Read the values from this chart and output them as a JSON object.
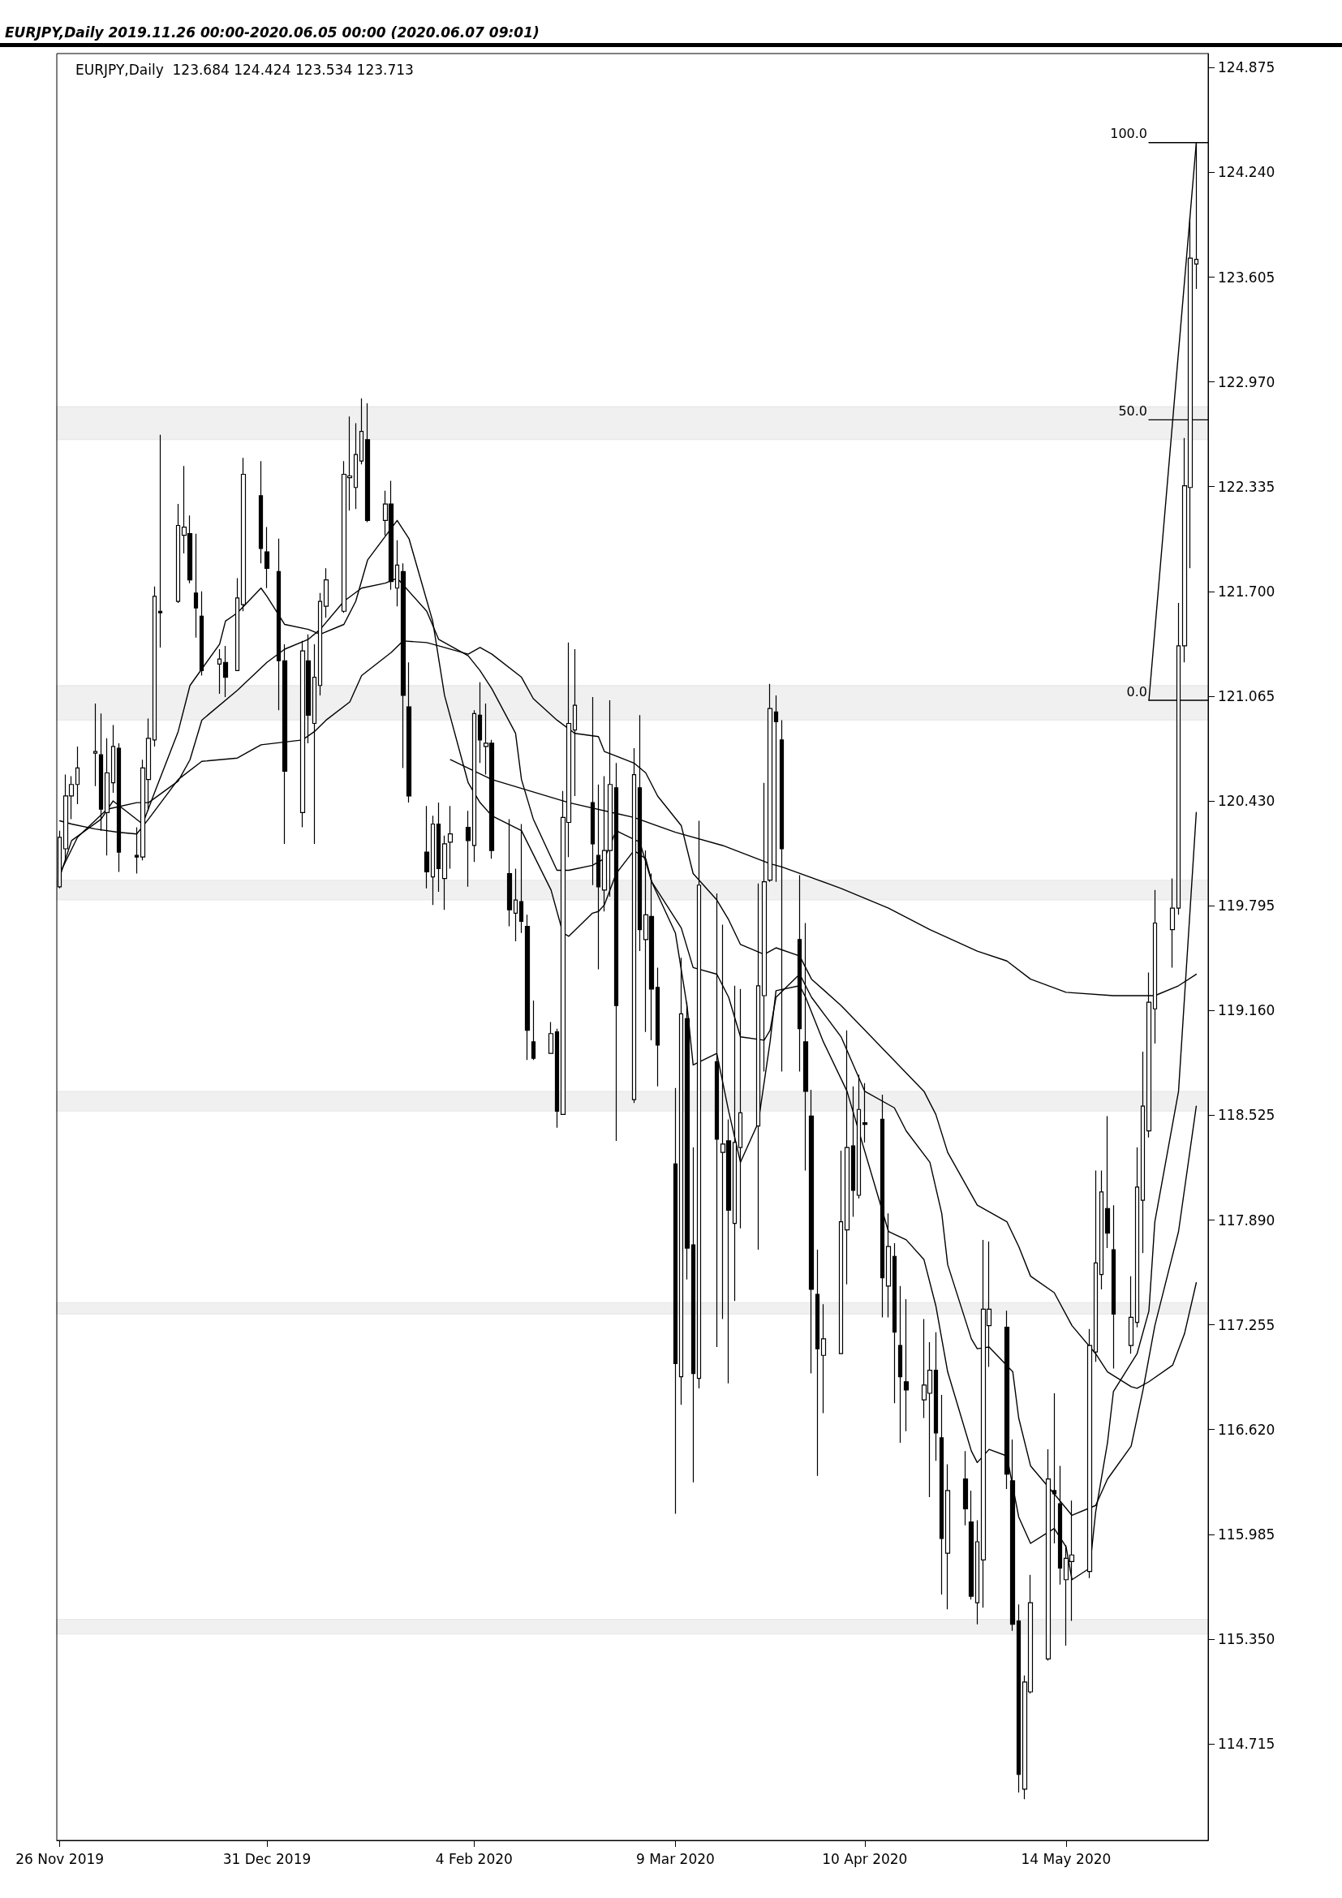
{
  "chart_data": {
    "type": "candlestick",
    "title": "EURJPY,Daily   2019.11.26 00:00-2020.06.05 00:00  (2020.06.07 09:01)",
    "subtitle": "EURJPY,Daily  123.684 124.424 123.534 123.713",
    "color": "#000000",
    "marker": "none",
    "x": [
      "2019-11-26",
      "2019-11-27",
      "2019-11-28",
      "2019-11-29",
      "2019-12-02",
      "2019-12-03",
      "2019-12-04",
      "2019-12-05",
      "2019-12-06",
      "2019-12-09",
      "2019-12-10",
      "2019-12-11",
      "2019-12-12",
      "2019-12-13",
      "2019-12-16",
      "2019-12-17",
      "2019-12-18",
      "2019-12-19",
      "2019-12-20",
      "2019-12-23",
      "2019-12-24",
      "2019-12-26",
      "2019-12-27",
      "2019-12-30",
      "2019-12-31",
      "2020-01-02",
      "2020-01-03",
      "2020-01-06",
      "2020-01-07",
      "2020-01-08",
      "2020-01-09",
      "2020-01-10",
      "2020-01-13",
      "2020-01-14",
      "2020-01-15",
      "2020-01-16",
      "2020-01-17",
      "2020-01-20",
      "2020-01-21",
      "2020-01-22",
      "2020-01-23",
      "2020-01-24",
      "2020-01-27",
      "2020-01-28",
      "2020-01-29",
      "2020-01-30",
      "2020-01-31",
      "2020-02-03",
      "2020-02-04",
      "2020-02-05",
      "2020-02-06",
      "2020-02-07",
      "2020-02-10",
      "2020-02-11",
      "2020-02-12",
      "2020-02-13",
      "2020-02-14",
      "2020-02-17",
      "2020-02-18",
      "2020-02-19",
      "2020-02-20",
      "2020-02-21",
      "2020-02-24",
      "2020-02-25",
      "2020-02-26",
      "2020-02-27",
      "2020-02-28",
      "2020-03-02",
      "2020-03-03",
      "2020-03-04",
      "2020-03-05",
      "2020-03-06",
      "2020-03-09",
      "2020-03-10",
      "2020-03-11",
      "2020-03-12",
      "2020-03-13",
      "2020-03-16",
      "2020-03-17",
      "2020-03-18",
      "2020-03-19",
      "2020-03-20",
      "2020-03-23",
      "2020-03-24",
      "2020-03-25",
      "2020-03-26",
      "2020-03-27",
      "2020-03-30",
      "2020-03-31",
      "2020-04-01",
      "2020-04-02",
      "2020-04-03",
      "2020-04-06",
      "2020-04-07",
      "2020-04-08",
      "2020-04-09",
      "2020-04-10",
      "2020-04-13",
      "2020-04-14",
      "2020-04-15",
      "2020-04-16",
      "2020-04-17",
      "2020-04-20",
      "2020-04-21",
      "2020-04-22",
      "2020-04-23",
      "2020-04-24",
      "2020-04-27",
      "2020-04-28",
      "2020-04-29",
      "2020-04-30",
      "2020-05-01",
      "2020-05-04",
      "2020-05-05",
      "2020-05-06",
      "2020-05-07",
      "2020-05-08",
      "2020-05-11",
      "2020-05-12",
      "2020-05-13",
      "2020-05-14",
      "2020-05-15",
      "2020-05-18",
      "2020-05-19",
      "2020-05-20",
      "2020-05-21",
      "2020-05-22",
      "2020-05-25",
      "2020-05-26",
      "2020-05-27",
      "2020-05-28",
      "2020-05-29",
      "2020-06-01",
      "2020-06-02",
      "2020-06-03",
      "2020-06-04",
      "2020-06-05"
    ],
    "ohlc": [
      [
        119.91,
        120.25,
        119.9,
        120.21
      ],
      [
        120.14,
        120.59,
        120.07,
        120.46
      ],
      [
        120.46,
        120.58,
        120.32,
        120.53
      ],
      [
        120.53,
        120.76,
        120.41,
        120.63
      ],
      [
        120.72,
        121.02,
        120.52,
        120.73
      ],
      [
        120.71,
        120.96,
        120.25,
        120.38
      ],
      [
        120.36,
        120.81,
        120.1,
        120.6
      ],
      [
        120.54,
        120.89,
        120.48,
        120.76
      ],
      [
        120.75,
        120.78,
        120.0,
        120.12
      ],
      [
        120.1,
        120.27,
        119.99,
        120.09
      ],
      [
        120.09,
        120.68,
        120.07,
        120.63
      ],
      [
        120.56,
        120.93,
        120.37,
        120.81
      ],
      [
        120.8,
        121.73,
        120.76,
        121.67
      ],
      [
        121.58,
        122.65,
        121.36,
        121.57
      ],
      [
        121.64,
        122.23,
        121.63,
        122.1
      ],
      [
        122.04,
        122.46,
        121.93,
        122.09
      ],
      [
        122.05,
        122.16,
        121.75,
        121.77
      ],
      [
        121.69,
        122.05,
        121.42,
        121.6
      ],
      [
        121.55,
        121.7,
        121.19,
        121.22
      ],
      [
        121.26,
        121.35,
        121.08,
        121.29
      ],
      [
        121.27,
        121.37,
        121.06,
        121.18
      ],
      [
        121.22,
        121.78,
        121.22,
        121.66
      ],
      [
        121.62,
        122.51,
        121.58,
        122.41
      ],
      [
        122.28,
        122.49,
        121.87,
        121.96
      ],
      [
        121.94,
        122.09,
        121.72,
        121.84
      ],
      [
        121.82,
        122.02,
        120.98,
        121.28
      ],
      [
        121.28,
        121.38,
        120.17,
        120.61
      ],
      [
        120.36,
        121.4,
        120.27,
        121.34
      ],
      [
        121.28,
        121.44,
        120.78,
        120.95
      ],
      [
        120.9,
        121.38,
        120.17,
        121.18
      ],
      [
        121.13,
        121.69,
        121.07,
        121.64
      ],
      [
        121.61,
        121.84,
        121.54,
        121.77
      ],
      [
        121.58,
        122.49,
        121.57,
        122.41
      ],
      [
        122.39,
        122.76,
        122.19,
        122.4
      ],
      [
        122.33,
        122.72,
        122.2,
        122.53
      ],
      [
        122.49,
        122.87,
        122.47,
        122.67
      ],
      [
        122.62,
        122.84,
        122.12,
        122.13
      ],
      [
        122.13,
        122.31,
        122.04,
        122.23
      ],
      [
        122.23,
        122.37,
        121.71,
        121.76
      ],
      [
        121.72,
        122.01,
        121.61,
        121.86
      ],
      [
        121.82,
        121.87,
        120.63,
        121.07
      ],
      [
        121.0,
        121.27,
        120.42,
        120.46
      ],
      [
        120.12,
        120.4,
        119.9,
        120.0
      ],
      [
        119.97,
        120.34,
        119.8,
        120.29
      ],
      [
        120.29,
        120.42,
        119.88,
        120.02
      ],
      [
        119.96,
        120.22,
        119.77,
        120.17
      ],
      [
        120.18,
        120.4,
        120.02,
        120.23
      ],
      [
        120.27,
        120.37,
        119.91,
        120.19
      ],
      [
        120.16,
        120.98,
        120.06,
        120.96
      ],
      [
        120.95,
        121.15,
        120.66,
        120.8
      ],
      [
        120.76,
        121.02,
        120.59,
        120.78
      ],
      [
        120.78,
        120.8,
        120.08,
        120.13
      ],
      [
        119.99,
        120.32,
        119.67,
        119.77
      ],
      [
        119.75,
        120.02,
        119.58,
        119.83
      ],
      [
        119.82,
        120.29,
        119.63,
        119.7
      ],
      [
        119.67,
        119.74,
        118.86,
        119.04
      ],
      [
        118.97,
        119.22,
        118.86,
        118.87
      ],
      [
        118.9,
        119.09,
        118.9,
        119.02
      ],
      [
        119.03,
        119.05,
        118.45,
        118.55
      ],
      [
        118.53,
        120.49,
        118.53,
        120.33
      ],
      [
        120.3,
        121.39,
        120.09,
        120.9
      ],
      [
        120.86,
        121.35,
        120.46,
        121.01
      ],
      [
        120.42,
        121.06,
        119.92,
        120.17
      ],
      [
        120.1,
        120.53,
        119.41,
        119.91
      ],
      [
        119.89,
        120.58,
        119.76,
        120.13
      ],
      [
        120.13,
        121.04,
        119.85,
        120.53
      ],
      [
        120.51,
        120.66,
        118.37,
        119.19
      ],
      [
        118.62,
        120.75,
        118.6,
        120.59
      ],
      [
        120.51,
        120.95,
        119.52,
        119.65
      ],
      [
        119.59,
        120.13,
        119.03,
        119.74
      ],
      [
        119.73,
        119.99,
        118.98,
        119.29
      ],
      [
        119.3,
        119.42,
        118.7,
        118.95
      ],
      [
        118.23,
        118.69,
        116.11,
        117.02
      ],
      [
        116.94,
        119.48,
        116.77,
        119.14
      ],
      [
        119.11,
        119.21,
        117.53,
        117.72
      ],
      [
        117.74,
        118.33,
        116.3,
        116.96
      ],
      [
        116.93,
        120.31,
        116.87,
        119.92
      ],
      [
        118.85,
        119.87,
        117.12,
        118.38
      ],
      [
        118.3,
        119.68,
        117.29,
        118.35
      ],
      [
        118.37,
        118.5,
        116.9,
        117.95
      ],
      [
        117.87,
        119.31,
        117.4,
        118.36
      ],
      [
        118.33,
        119.29,
        117.84,
        118.54
      ],
      [
        118.46,
        119.93,
        117.71,
        119.31
      ],
      [
        119.25,
        120.54,
        118.79,
        119.94
      ],
      [
        119.95,
        121.14,
        119.94,
        120.99
      ],
      [
        120.97,
        121.07,
        119.94,
        120.91
      ],
      [
        120.8,
        120.92,
        118.79,
        120.14
      ],
      [
        119.59,
        119.98,
        118.79,
        119.05
      ],
      [
        118.97,
        119.69,
        118.19,
        118.67
      ],
      [
        118.52,
        118.68,
        116.96,
        117.47
      ],
      [
        117.44,
        117.71,
        116.34,
        117.11
      ],
      [
        117.07,
        117.38,
        116.72,
        117.17
      ],
      [
        117.08,
        118.31,
        117.08,
        117.88
      ],
      [
        117.83,
        119.04,
        117.5,
        118.33
      ],
      [
        118.34,
        118.7,
        117.91,
        118.07
      ],
      [
        118.04,
        118.77,
        118.02,
        118.56
      ],
      [
        118.48,
        118.72,
        118.36,
        118.47
      ],
      [
        118.5,
        118.65,
        117.3,
        117.54
      ],
      [
        117.49,
        117.93,
        117.3,
        117.73
      ],
      [
        117.67,
        117.75,
        116.78,
        117.21
      ],
      [
        117.13,
        117.49,
        116.54,
        116.94
      ],
      [
        116.91,
        117.41,
        116.61,
        116.86
      ],
      [
        116.8,
        117.29,
        116.69,
        116.89
      ],
      [
        116.84,
        117.15,
        116.21,
        116.98
      ],
      [
        116.98,
        117.21,
        116.43,
        116.6
      ],
      [
        116.57,
        116.83,
        115.62,
        115.96
      ],
      [
        115.87,
        116.41,
        115.53,
        116.25
      ],
      [
        116.32,
        116.49,
        116.04,
        116.14
      ],
      [
        116.06,
        116.25,
        115.59,
        115.61
      ],
      [
        115.57,
        116.07,
        115.44,
        115.94
      ],
      [
        115.83,
        117.77,
        115.54,
        117.35
      ],
      [
        117.25,
        117.76,
        117.0,
        117.35
      ],
      [
        117.24,
        117.34,
        116.26,
        116.35
      ],
      [
        116.31,
        116.56,
        115.4,
        115.44
      ],
      [
        115.46,
        115.56,
        114.42,
        114.53
      ],
      [
        114.44,
        115.13,
        114.38,
        115.09
      ],
      [
        115.03,
        115.74,
        115.02,
        115.57
      ],
      [
        115.23,
        116.5,
        115.22,
        116.32
      ],
      [
        116.25,
        116.84,
        115.93,
        116.23
      ],
      [
        116.17,
        116.4,
        115.68,
        115.78
      ],
      [
        115.71,
        115.92,
        115.31,
        115.84
      ],
      [
        115.82,
        116.19,
        115.46,
        115.86
      ],
      [
        115.76,
        117.23,
        115.72,
        117.13
      ],
      [
        117.09,
        118.19,
        117.03,
        117.63
      ],
      [
        117.56,
        118.19,
        117.47,
        118.06
      ],
      [
        117.96,
        118.52,
        117.72,
        117.81
      ],
      [
        117.71,
        117.98,
        116.99,
        117.32
      ],
      [
        117.13,
        117.55,
        117.08,
        117.3
      ],
      [
        117.27,
        118.33,
        117.24,
        118.09
      ],
      [
        118.01,
        118.91,
        117.69,
        118.58
      ],
      [
        118.43,
        119.39,
        118.39,
        119.21
      ],
      [
        119.17,
        119.89,
        118.96,
        119.69
      ],
      [
        119.65,
        119.96,
        119.42,
        119.78
      ],
      [
        119.78,
        121.63,
        119.74,
        121.37
      ],
      [
        121.37,
        122.63,
        121.27,
        122.34
      ],
      [
        122.33,
        123.97,
        121.84,
        123.72
      ],
      [
        123.684,
        124.424,
        123.534,
        123.713
      ]
    ],
    "series": [
      {
        "type": "line",
        "color": "#000000",
        "x": [
          "2019-11-26",
          "2019-11-28",
          "2019-12-03",
          "2019-12-05",
          "2019-12-10",
          "2019-12-12",
          "2019-12-16",
          "2019-12-18",
          "2019-12-23",
          "2019-12-24",
          "2019-12-26",
          "2019-12-30",
          "2019-12-31",
          "2020-01-03",
          "2020-01-07",
          "2020-01-09",
          "2020-01-13",
          "2020-01-15",
          "2020-01-17",
          "2020-01-22",
          "2020-01-24",
          "2020-01-28",
          "2020-01-30",
          "2020-02-03",
          "2020-02-05",
          "2020-02-07",
          "2020-02-12",
          "2020-02-17",
          "2020-02-19",
          "2020-02-20",
          "2020-02-24",
          "2020-02-25",
          "2020-02-26",
          "2020-02-28",
          "2020-03-02",
          "2020-03-04",
          "2020-03-05",
          "2020-03-09",
          "2020-03-11",
          "2020-03-12",
          "2020-03-16",
          "2020-03-18",
          "2020-03-20",
          "2020-03-23",
          "2020-03-25",
          "2020-03-26",
          "2020-03-30",
          "2020-03-31",
          "2020-04-03",
          "2020-04-07",
          "2020-04-14",
          "2020-04-17",
          "2020-04-20",
          "2020-04-22",
          "2020-04-24",
          "2020-04-28",
          "2020-04-29",
          "2020-05-01",
          "2020-05-04",
          "2020-05-06",
          "2020-05-08",
          "2020-05-12",
          "2020-05-14",
          "2020-05-15",
          "2020-05-18",
          "2020-05-19",
          "2020-05-21",
          "2020-05-22",
          "2020-05-26",
          "2020-05-28",
          "2020-05-29",
          "2020-06-02",
          "2020-06-05"
        ],
        "values": [
          119.97,
          120.19,
          120.32,
          120.43,
          120.29,
          120.48,
          120.85,
          121.13,
          121.38,
          121.52,
          121.57,
          121.72,
          121.67,
          121.5,
          121.47,
          121.44,
          121.5,
          121.64,
          121.89,
          122.13,
          122.02,
          121.52,
          121.07,
          120.54,
          120.42,
          120.34,
          120.25,
          119.89,
          119.63,
          119.61,
          119.75,
          119.76,
          119.8,
          119.99,
          120.13,
          120.08,
          119.94,
          119.63,
          119.18,
          118.83,
          118.9,
          118.55,
          118.24,
          118.48,
          118.97,
          119.28,
          119.31,
          119.24,
          118.97,
          118.67,
          117.82,
          117.77,
          117.65,
          117.37,
          116.97,
          116.49,
          116.42,
          116.5,
          116.46,
          116.09,
          115.93,
          116.02,
          115.91,
          115.71,
          115.78,
          116.12,
          116.54,
          116.85,
          117.08,
          117.34,
          117.88,
          118.67,
          120.36
        ]
      },
      {
        "type": "line",
        "color": "#000000",
        "x": [
          "2019-11-26",
          "2019-11-29",
          "2019-12-04",
          "2019-12-09",
          "2019-12-11",
          "2019-12-16",
          "2019-12-18",
          "2019-12-20",
          "2019-12-26",
          "2019-12-31",
          "2020-01-03",
          "2020-01-07",
          "2020-01-09",
          "2020-01-13",
          "2020-01-16",
          "2020-01-20",
          "2020-01-22",
          "2020-01-27",
          "2020-01-29",
          "2020-02-03",
          "2020-02-05",
          "2020-02-07",
          "2020-02-11",
          "2020-02-12",
          "2020-02-14",
          "2020-02-18",
          "2020-02-20",
          "2020-02-24",
          "2020-02-26",
          "2020-02-28",
          "2020-03-03",
          "2020-03-05",
          "2020-03-10",
          "2020-03-12",
          "2020-03-16",
          "2020-03-18",
          "2020-03-20",
          "2020-03-24",
          "2020-03-25",
          "2020-03-26",
          "2020-03-30",
          "2020-04-01",
          "2020-04-06",
          "2020-04-10",
          "2020-04-15",
          "2020-04-17",
          "2020-04-21",
          "2020-04-23",
          "2020-04-24",
          "2020-04-28",
          "2020-04-29",
          "2020-05-01",
          "2020-05-05",
          "2020-05-06",
          "2020-05-08",
          "2020-05-12",
          "2020-05-15",
          "2020-05-19",
          "2020-05-21",
          "2020-05-25",
          "2020-05-27",
          "2020-05-29",
          "2020-06-02",
          "2020-06-05"
        ],
        "values": [
          119.99,
          120.21,
          120.38,
          120.42,
          120.42,
          120.55,
          120.68,
          120.92,
          121.1,
          121.27,
          121.35,
          121.41,
          121.47,
          121.64,
          121.72,
          121.75,
          121.78,
          121.58,
          121.41,
          121.31,
          121.22,
          121.11,
          120.84,
          120.56,
          120.32,
          120.01,
          120.01,
          120.04,
          120.08,
          120.25,
          120.18,
          119.94,
          119.66,
          119.42,
          119.38,
          119.24,
          119.0,
          118.98,
          119.04,
          119.24,
          119.38,
          119.24,
          119.0,
          118.67,
          118.57,
          118.43,
          118.24,
          117.93,
          117.62,
          117.17,
          117.11,
          117.12,
          116.97,
          116.69,
          116.4,
          116.23,
          116.1,
          116.16,
          116.32,
          116.52,
          116.86,
          117.25,
          117.82,
          118.58
        ]
      },
      {
        "type": "line",
        "color": "#000000",
        "x": [
          "2019-11-26",
          "2019-11-28",
          "2019-12-02",
          "2019-12-06",
          "2019-12-09",
          "2019-12-11",
          "2019-12-16",
          "2019-12-20",
          "2019-12-26",
          "2019-12-30",
          "2020-01-06",
          "2020-01-08",
          "2020-01-10",
          "2020-01-14",
          "2020-01-16",
          "2020-01-21",
          "2020-01-23",
          "2020-01-27",
          "2020-01-29",
          "2020-02-03",
          "2020-02-05",
          "2020-02-07",
          "2020-02-12",
          "2020-02-14",
          "2020-02-18",
          "2020-02-21",
          "2020-02-25",
          "2020-02-26",
          "2020-03-02",
          "2020-03-04",
          "2020-03-06",
          "2020-03-10",
          "2020-03-12",
          "2020-03-16",
          "2020-03-18",
          "2020-03-20",
          "2020-03-24",
          "2020-03-26",
          "2020-03-30",
          "2020-04-01",
          "2020-04-06",
          "2020-04-20",
          "2020-04-22",
          "2020-04-24",
          "2020-04-29",
          "2020-05-04",
          "2020-05-06",
          "2020-05-08",
          "2020-05-12",
          "2020-05-15",
          "2020-05-19",
          "2020-05-21",
          "2020-05-25",
          "2020-05-26",
          "2020-05-28",
          "2020-06-01",
          "2020-06-03",
          "2020-06-05"
        ],
        "values": [
          120.31,
          120.29,
          120.26,
          120.24,
          120.23,
          120.32,
          120.56,
          120.67,
          120.69,
          120.77,
          120.8,
          120.85,
          120.92,
          121.03,
          121.19,
          121.33,
          121.4,
          121.39,
          121.37,
          121.32,
          121.36,
          121.32,
          121.18,
          121.05,
          120.92,
          120.84,
          120.82,
          120.73,
          120.66,
          120.6,
          120.46,
          120.28,
          119.99,
          119.83,
          119.71,
          119.56,
          119.5,
          119.54,
          119.49,
          119.35,
          119.19,
          118.67,
          118.53,
          118.3,
          117.98,
          117.88,
          117.73,
          117.55,
          117.45,
          117.25,
          117.08,
          116.97,
          116.88,
          116.87,
          116.91,
          117.01,
          117.2,
          117.51
        ]
      },
      {
        "type": "line",
        "color": "#000000",
        "x": [
          "2020-05-28",
          "2020-06-07"
        ],
        "values": [
          124.42,
          124.42
        ]
      },
      {
        "type": "line",
        "color": "#000000",
        "x": [
          "2020-05-28",
          "2020-06-07"
        ],
        "values": [
          122.74,
          122.74
        ]
      },
      {
        "type": "line",
        "color": "#000000",
        "x": [
          "2020-05-28",
          "2020-06-07"
        ],
        "values": [
          121.04,
          121.04
        ]
      },
      {
        "type": "line",
        "color": "#000000",
        "x": [
          "2020-05-28",
          "2020-06-05"
        ],
        "values": [
          121.04,
          124.42
        ]
      },
      {
        "type": "line",
        "color": "#000000",
        "x": [
          "2020-01-31",
          "2020-02-07",
          "2020-02-20",
          "2020-03-02",
          "2020-03-09",
          "2020-03-17",
          "2020-03-25",
          "2020-03-27",
          "2020-04-06",
          "2020-04-14",
          "2020-04-21",
          "2020-04-29",
          "2020-05-04",
          "2020-05-08",
          "2020-05-14",
          "2020-05-22",
          "2020-05-29",
          "2020-06-02",
          "2020-06-05"
        ],
        "values": [
          120.68,
          120.56,
          120.42,
          120.33,
          120.24,
          120.16,
          120.05,
          120.03,
          119.9,
          119.78,
          119.65,
          119.52,
          119.46,
          119.35,
          119.27,
          119.25,
          119.25,
          119.31,
          119.38
        ]
      }
    ],
    "xlim": [
      "2019-11-25T12:00",
      "2020-06-07"
    ],
    "xticks": [
      {
        "value": "2019-11-26",
        "label": "26 Nov 2019"
      },
      {
        "value": "2019-12-31",
        "label": "31 Dec 2019"
      },
      {
        "value": "2020-02-04",
        "label": "4 Feb 2020"
      },
      {
        "value": "2020-03-09",
        "label": "9 Mar 2020"
      },
      {
        "value": "2020-04-10",
        "label": "10 Apr 2020"
      },
      {
        "value": "2020-05-14",
        "label": "14 May 2020"
      }
    ],
    "ylim": [
      114.13,
      124.96
    ],
    "yticks": [
      114.715,
      {
        "value": 115.35,
        "label": "115.350"
      },
      115.985,
      {
        "value": 116.62,
        "label": "116.620"
      },
      117.255,
      {
        "value": 117.89,
        "label": "117.890"
      },
      118.525,
      {
        "value": 119.16,
        "label": "119.160"
      },
      119.795,
      {
        "value": 120.43,
        "label": "120.430"
      },
      121.065,
      {
        "value": 121.7,
        "label": "121.700"
      },
      122.335,
      {
        "value": 122.97,
        "label": "122.970"
      },
      123.605,
      {
        "value": 124.24,
        "label": "124.240"
      },
      124.875
    ],
    "annotations": [
      {
        "text": "100.0",
        "x": "2020-05-28",
        "y": 124.42
      },
      {
        "text": "50.0",
        "x": "2020-05-28",
        "y": 122.74
      },
      {
        "text": "0.0",
        "x": "2020-05-28",
        "y": 121.04
      }
    ],
    "bands": [
      {
        "axis": "y",
        "from": 122.62,
        "to": 122.82,
        "color": "#000000"
      },
      {
        "axis": "y",
        "from": 120.92,
        "to": 121.13,
        "color": "#000000"
      },
      {
        "axis": "y",
        "from": 119.83,
        "to": 119.95,
        "color": "#000000"
      },
      {
        "axis": "y",
        "from": 118.55,
        "to": 118.67,
        "color": "#000000"
      },
      {
        "axis": "y",
        "from": 117.32,
        "to": 117.39,
        "color": "#000000"
      },
      {
        "axis": "y",
        "from": 115.38,
        "to": 115.47,
        "color": "#000000"
      }
    ]
  }
}
